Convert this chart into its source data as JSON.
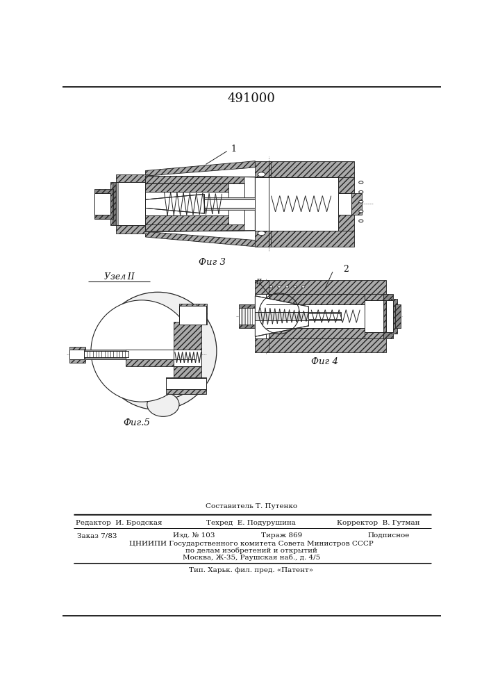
{
  "patent_number": "491000",
  "page_color": "#ffffff",
  "fig3_label": "Фиг 3",
  "fig4_label": "Фиг 4",
  "fig5_label": "Фиг.5",
  "label1": "1",
  "label2": "2",
  "label_uzel": "Узел II",
  "label_II": "II",
  "footer_sestavitel": "Составитель Т. Путенко",
  "footer_redaktor": "Редактор  И. Бродская",
  "footer_tehred": "Техред  Е. Подурушина",
  "footer_korrektor": "Корректор  В. Гутман",
  "footer_zakaz": "Заказ 7/83",
  "footer_izd": "Изд. № 103",
  "footer_tirazh": "Тираж 869",
  "footer_podpisnoe": "Подписное",
  "footer_tsniippi": "ЦНИИПИ Государственного комитета Совета Министров СССР",
  "footer_po_delam": "по делам изобретений и открытий",
  "footer_moskva": "Москва, Ж-35, Раушская наб., д. 4/5",
  "footer_tip": "Тип. Харьк. фил. пред. «Патент»"
}
